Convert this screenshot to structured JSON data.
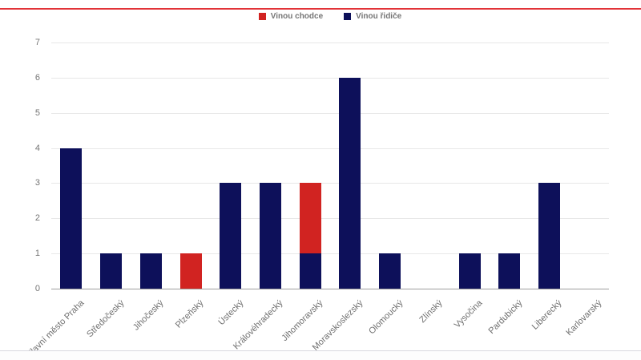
{
  "page": {
    "accent_line_color": "#e23338",
    "divider_color": "#d9d9df",
    "background_color": "#ffffff"
  },
  "chart_data": {
    "type": "bar",
    "stacked": true,
    "title": "",
    "xlabel": "",
    "ylabel": "",
    "categories": [
      "Hlavní město Praha",
      "Středočeský",
      "Jihočeský",
      "Plzeňský",
      "Ústecký",
      "Královéhradecký",
      "Jihomoravský",
      "Moravskoslezský",
      "Olomoucký",
      "Zlínský",
      "Vysočina",
      "Pardubický",
      "Liberecký",
      "Karlovarský"
    ],
    "series": [
      {
        "name": "Vinou chodce",
        "color": "#d12321",
        "values": [
          0,
          0,
          0,
          1,
          0,
          0,
          2,
          0,
          0,
          0,
          0,
          0,
          0,
          0
        ]
      },
      {
        "name": "Vinou řidiče",
        "color": "#0d105a",
        "values": [
          4,
          1,
          1,
          0,
          3,
          3,
          1,
          6,
          1,
          0,
          1,
          1,
          3,
          0
        ]
      }
    ],
    "totals": [
      4,
      1,
      1,
      1,
      3,
      3,
      3,
      6,
      1,
      0,
      1,
      1,
      3,
      0
    ],
    "ylim": [
      0,
      7
    ],
    "yticks": [
      0,
      1,
      2,
      3,
      4,
      5,
      6,
      7
    ],
    "grid": true,
    "legend_position": "top-center",
    "axis_text_color": "#757575",
    "gridline_color": "#e8e8e8",
    "baseline_color": "#9e9e9e"
  }
}
